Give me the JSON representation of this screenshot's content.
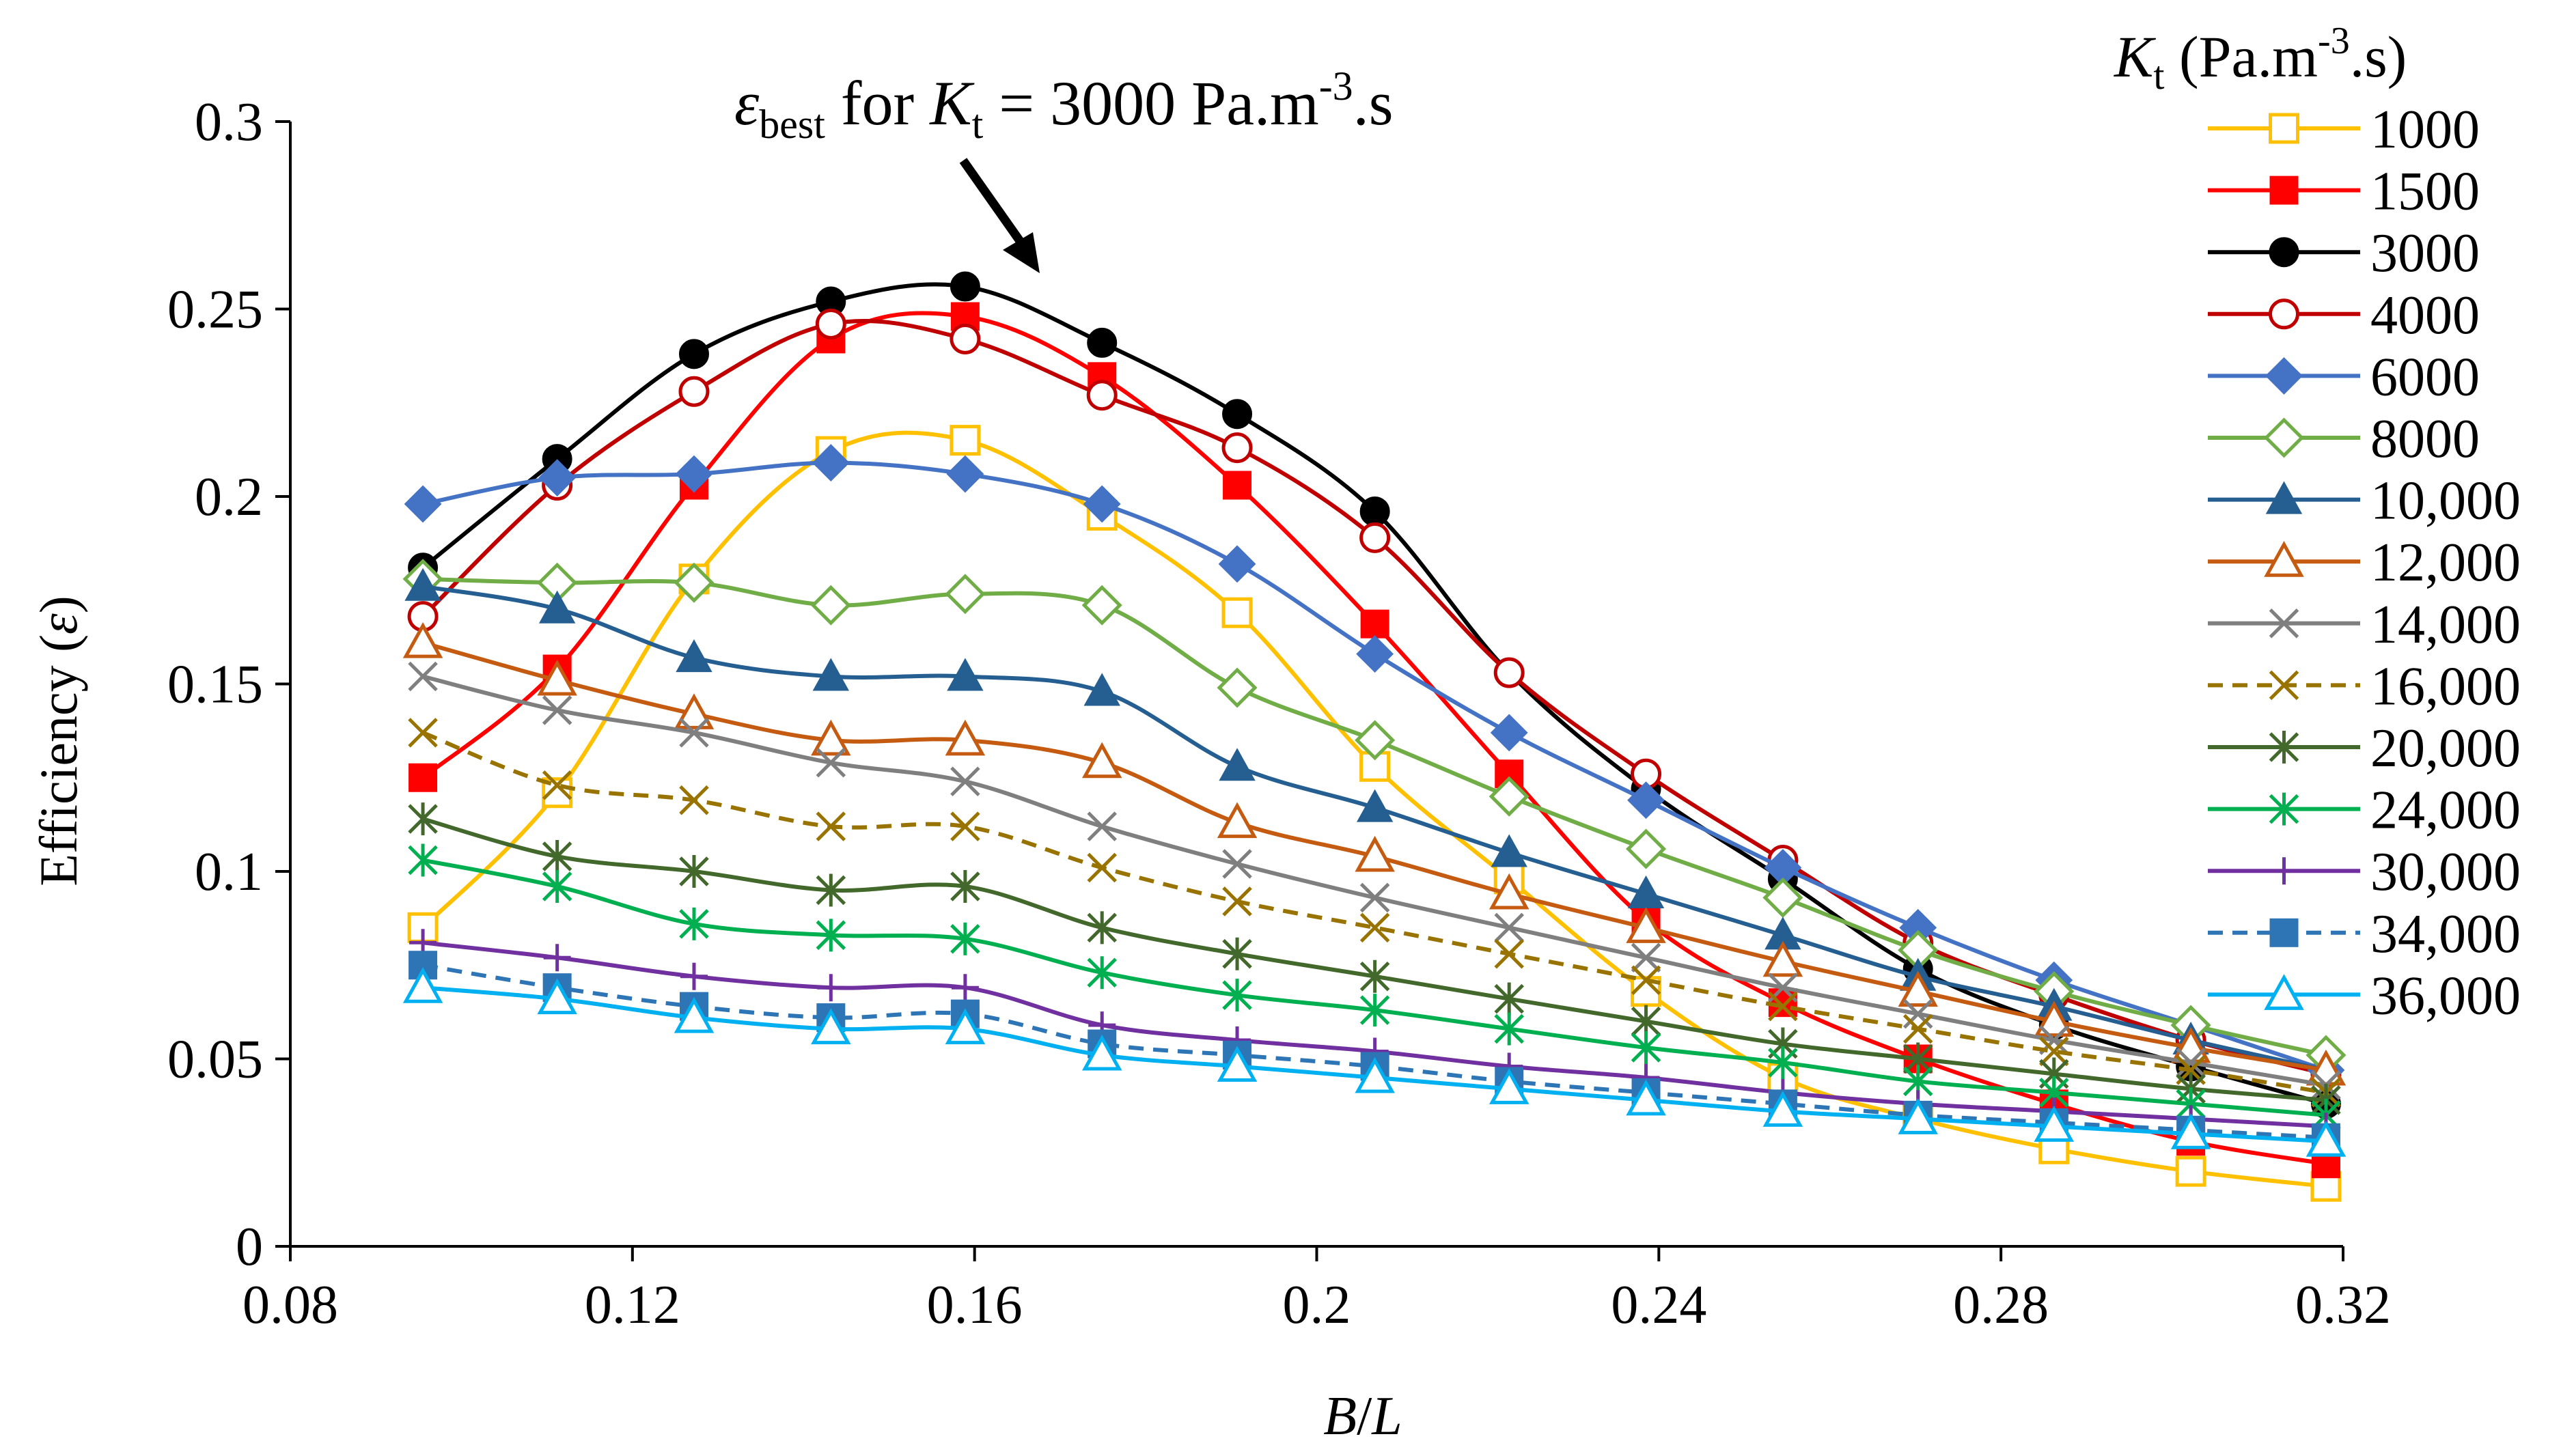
{
  "chart_data": {
    "type": "line",
    "title": "",
    "annotation": {
      "epsilon": "ε",
      "best_sub": "best",
      "for_text": " for ",
      "K": "K",
      "t_sub": "t",
      "eq_value": " = 3000 Pa.m",
      "exp": "-3",
      "unit_end": ".s"
    },
    "xlabel": {
      "B": "B",
      "slash": "/",
      "L": "L"
    },
    "ylabel": {
      "prefix": "Efficiency (",
      "symbol": "ε",
      "suffix": ")"
    },
    "legend_title": {
      "K": "K",
      "t_sub": "t",
      "unit_pre": " (Pa.m",
      "exp": "-3",
      "unit_post": ".s)"
    },
    "xlim": [
      0.08,
      0.32
    ],
    "ylim": [
      0,
      0.3
    ],
    "x_ticks": [
      "0.08",
      "0.12",
      "0.16",
      "0.2",
      "0.24",
      "0.28",
      "0.32"
    ],
    "y_ticks": [
      "0",
      "0.05",
      "0.1",
      "0.15",
      "0.2",
      "0.25",
      "0.3"
    ],
    "x": [
      0.0955,
      0.1112,
      0.1272,
      0.1432,
      0.1589,
      0.1749,
      0.1907,
      0.2068,
      0.2225,
      0.2385,
      0.2545,
      0.2703,
      0.2862,
      0.3022,
      0.318
    ],
    "series": [
      {
        "name": "1000",
        "color": "#FFC000",
        "marker": "square-open",
        "dash": false,
        "values": [
          0.085,
          0.121,
          0.178,
          0.212,
          0.215,
          0.195,
          0.169,
          0.128,
          0.098,
          0.068,
          0.045,
          0.034,
          0.026,
          0.02,
          0.016
        ]
      },
      {
        "name": "1500",
        "color": "#FF0000",
        "marker": "square-filled",
        "dash": false,
        "values": [
          0.125,
          0.154,
          0.203,
          0.242,
          0.248,
          0.232,
          0.203,
          0.166,
          0.126,
          0.087,
          0.065,
          0.05,
          0.038,
          0.028,
          0.022
        ]
      },
      {
        "name": "3000",
        "color": "#000000",
        "marker": "circle-filled",
        "dash": false,
        "values": [
          0.181,
          0.21,
          0.238,
          0.252,
          0.256,
          0.241,
          0.222,
          0.196,
          0.153,
          0.122,
          0.098,
          0.074,
          0.059,
          0.048,
          0.038
        ]
      },
      {
        "name": "4000",
        "color": "#C00000",
        "marker": "circle-open",
        "dash": false,
        "values": [
          0.168,
          0.203,
          0.228,
          0.246,
          0.242,
          0.227,
          0.213,
          0.189,
          0.153,
          0.126,
          0.103,
          0.081,
          0.067,
          0.055,
          0.046
        ]
      },
      {
        "name": "6000",
        "color": "#4472C4",
        "marker": "diamond-filled",
        "dash": false,
        "values": [
          0.198,
          0.205,
          0.206,
          0.209,
          0.206,
          0.198,
          0.182,
          0.158,
          0.137,
          0.119,
          0.101,
          0.085,
          0.071,
          0.059,
          0.047
        ]
      },
      {
        "name": "8000",
        "color": "#70AD47",
        "marker": "diamond-open",
        "dash": false,
        "values": [
          0.178,
          0.177,
          0.177,
          0.171,
          0.174,
          0.171,
          0.149,
          0.135,
          0.12,
          0.106,
          0.093,
          0.079,
          0.068,
          0.059,
          0.051
        ]
      },
      {
        "name": "10,000",
        "color": "#255E91",
        "marker": "triangle-filled",
        "dash": false,
        "values": [
          0.176,
          0.17,
          0.157,
          0.152,
          0.152,
          0.148,
          0.128,
          0.117,
          0.105,
          0.094,
          0.083,
          0.072,
          0.064,
          0.055,
          0.047
        ]
      },
      {
        "name": "12,000",
        "color": "#C55A11",
        "marker": "triangle-open",
        "dash": false,
        "values": [
          0.161,
          0.151,
          0.142,
          0.135,
          0.135,
          0.129,
          0.113,
          0.104,
          0.094,
          0.085,
          0.076,
          0.068,
          0.06,
          0.053,
          0.047
        ]
      },
      {
        "name": "14,000",
        "color": "#7F7F7F",
        "marker": "x",
        "dash": false,
        "values": [
          0.152,
          0.143,
          0.137,
          0.129,
          0.124,
          0.112,
          0.102,
          0.093,
          0.085,
          0.077,
          0.069,
          0.062,
          0.055,
          0.049,
          0.043
        ]
      },
      {
        "name": "16,000",
        "color": "#997300",
        "marker": "x",
        "dash": true,
        "values": [
          0.137,
          0.123,
          0.119,
          0.112,
          0.112,
          0.101,
          0.092,
          0.085,
          0.078,
          0.071,
          0.064,
          0.058,
          0.052,
          0.047,
          0.041
        ]
      },
      {
        "name": "20,000",
        "color": "#43682B",
        "marker": "star",
        "dash": false,
        "values": [
          0.114,
          0.104,
          0.1,
          0.095,
          0.096,
          0.085,
          0.078,
          0.072,
          0.066,
          0.06,
          0.054,
          0.05,
          0.046,
          0.042,
          0.039
        ]
      },
      {
        "name": "24,000",
        "color": "#00B050",
        "marker": "star",
        "dash": false,
        "values": [
          0.103,
          0.096,
          0.086,
          0.083,
          0.082,
          0.073,
          0.067,
          0.063,
          0.058,
          0.053,
          0.049,
          0.044,
          0.041,
          0.038,
          0.035
        ]
      },
      {
        "name": "30,000",
        "color": "#7030A0",
        "marker": "plus",
        "dash": false,
        "values": [
          0.081,
          0.077,
          0.072,
          0.069,
          0.069,
          0.059,
          0.055,
          0.052,
          0.048,
          0.045,
          0.041,
          0.038,
          0.036,
          0.034,
          0.032
        ]
      },
      {
        "name": "34,000",
        "color": "#2E75B6",
        "marker": "square-filled",
        "dash": true,
        "values": [
          0.075,
          0.069,
          0.064,
          0.061,
          0.062,
          0.054,
          0.051,
          0.048,
          0.044,
          0.041,
          0.038,
          0.035,
          0.033,
          0.031,
          0.029
        ]
      },
      {
        "name": "36,000",
        "color": "#00B0F0",
        "marker": "triangle-open",
        "dash": false,
        "values": [
          0.069,
          0.066,
          0.061,
          0.058,
          0.058,
          0.051,
          0.048,
          0.045,
          0.042,
          0.039,
          0.036,
          0.034,
          0.032,
          0.03,
          0.028
        ]
      }
    ]
  }
}
